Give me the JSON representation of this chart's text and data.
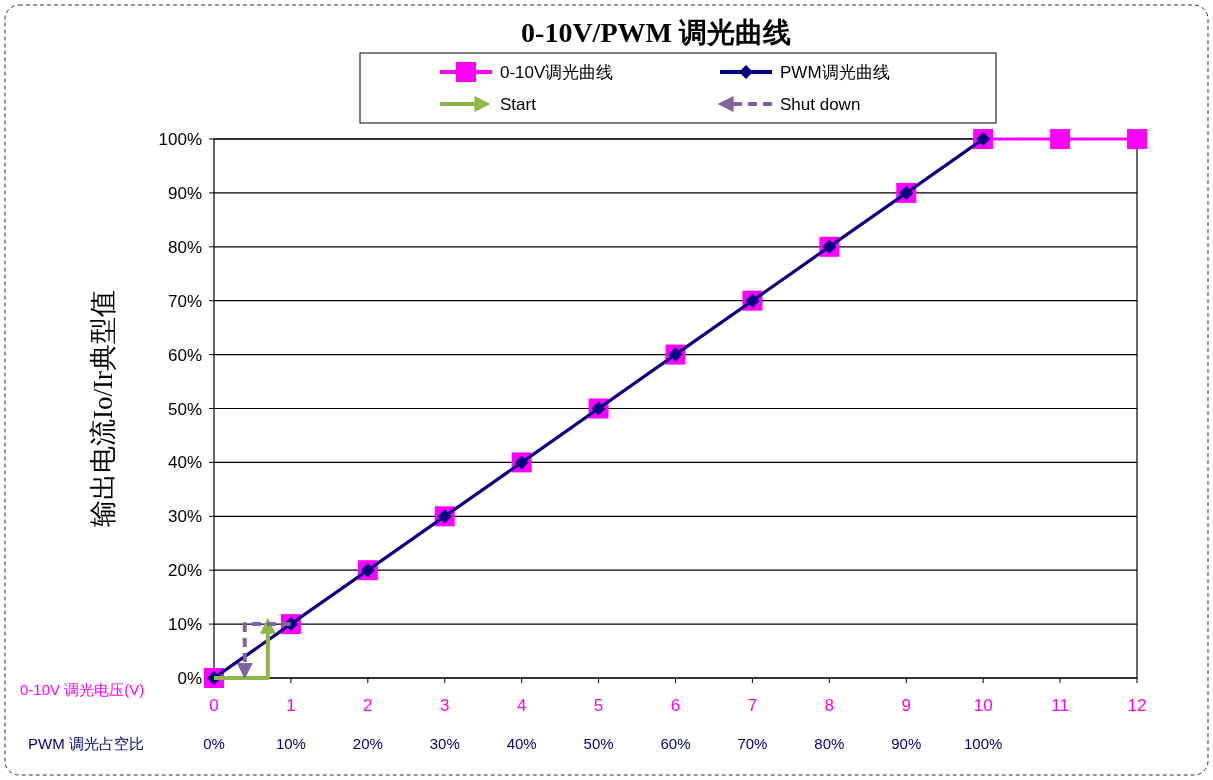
{
  "chart_data": {
    "type": "line",
    "title": "0-10V/PWM 调光曲线",
    "ylabel": "输出电流Io/Ir典型值",
    "xlabel": "0-10V 调光电压(V)",
    "x2label": "PWM 调光占空比",
    "xlim": [
      0,
      12
    ],
    "xticks": [
      0,
      1,
      2,
      3,
      4,
      5,
      6,
      7,
      8,
      9,
      10,
      11,
      12
    ],
    "x2lim": [
      0,
      120
    ],
    "x2ticks": [
      {
        "value": 0,
        "label": "0%"
      },
      {
        "value": 10,
        "label": "10%"
      },
      {
        "value": 20,
        "label": "20%"
      },
      {
        "value": 30,
        "label": "30%"
      },
      {
        "value": 40,
        "label": "40%"
      },
      {
        "value": 50,
        "label": "50%"
      },
      {
        "value": 60,
        "label": "60%"
      },
      {
        "value": 70,
        "label": "70%"
      },
      {
        "value": 80,
        "label": "80%"
      },
      {
        "value": 90,
        "label": "90%"
      },
      {
        "value": 100,
        "label": "100%"
      }
    ],
    "ylim": [
      0,
      100
    ],
    "yticks": [
      {
        "value": 0,
        "label": "0%"
      },
      {
        "value": 10,
        "label": "10%"
      },
      {
        "value": 20,
        "label": "20%"
      },
      {
        "value": 30,
        "label": "30%"
      },
      {
        "value": 40,
        "label": "40%"
      },
      {
        "value": 50,
        "label": "50%"
      },
      {
        "value": 60,
        "label": "60%"
      },
      {
        "value": 70,
        "label": "70%"
      },
      {
        "value": 80,
        "label": "80%"
      },
      {
        "value": 90,
        "label": "90%"
      },
      {
        "value": 100,
        "label": "100%"
      }
    ],
    "grid": "y",
    "legend": "top",
    "series": [
      {
        "name": "0-10V调光曲线",
        "color": "#ff00ff",
        "marker": "square",
        "x": [
          0,
          1,
          2,
          3,
          4,
          5,
          6,
          7,
          8,
          9,
          10,
          11,
          12
        ],
        "values": [
          0,
          10,
          20,
          30,
          40,
          50,
          60,
          70,
          80,
          90,
          100,
          100,
          100
        ]
      },
      {
        "name": "PWM调光曲线",
        "color": "#000080",
        "marker": "diamond",
        "x": [
          0,
          1,
          2,
          3,
          4,
          5,
          6,
          7,
          8,
          9,
          10
        ],
        "values": [
          0,
          10,
          20,
          30,
          40,
          50,
          60,
          70,
          80,
          90,
          100
        ]
      },
      {
        "name": "Start",
        "color": "#8db848",
        "marker": "none",
        "line_style": "solid",
        "x": [
          0,
          0.7,
          0.7
        ],
        "values": [
          0,
          0,
          10
        ]
      },
      {
        "name": "Shut down",
        "color": "#8064a2",
        "marker": "none",
        "line_style": "dashed",
        "x": [
          1,
          0.4,
          0.4
        ],
        "values": [
          10,
          10,
          1
        ]
      }
    ]
  }
}
